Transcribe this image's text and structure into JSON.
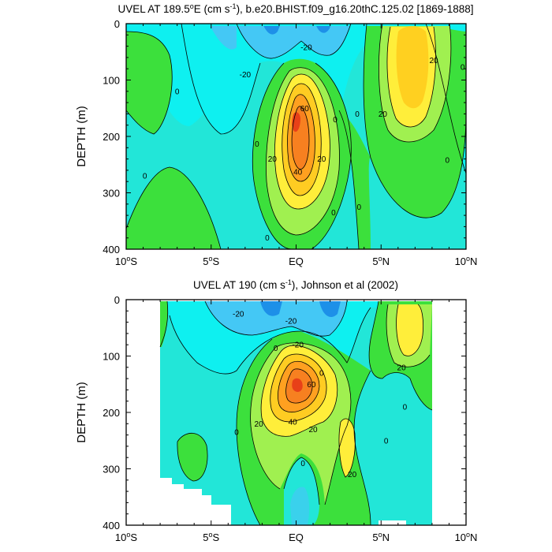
{
  "chart_data": [
    {
      "type": "contour",
      "title_main": "UVEL AT 189.5",
      "title_sup1": "o",
      "title_mid": "E (cm s",
      "title_sup2": "-1",
      "title_tail": "), b.e20.BHIST.f09_g16.20thC.125.02 [1869-1888]",
      "ylabel": "DEPTH (m)",
      "xticks": [
        {
          "v": -10,
          "main": "10",
          "sup": "o",
          "end": "S"
        },
        {
          "v": -5,
          "main": "5",
          "sup": "o",
          "end": "S"
        },
        {
          "v": 0,
          "main": "EQ",
          "sup": "",
          "end": ""
        },
        {
          "v": 5,
          "main": "5",
          "sup": "o",
          "end": "N"
        },
        {
          "v": 10,
          "main": "10",
          "sup": "o",
          "end": "N"
        }
      ],
      "yticks": [
        0,
        100,
        200,
        300,
        400
      ],
      "xlim": [
        -10,
        10
      ],
      "ylim": [
        0,
        400
      ],
      "contour_labels": [
        {
          "text": "-20",
          "x": -3,
          "y": 90
        },
        {
          "text": "-20",
          "x": 0.6,
          "y": 42
        },
        {
          "text": "0",
          "x": -7,
          "y": 120
        },
        {
          "text": "0",
          "x": -8.9,
          "y": 270
        },
        {
          "text": "0",
          "x": -2.3,
          "y": 213
        },
        {
          "text": "0",
          "x": 2.3,
          "y": 170
        },
        {
          "text": "0",
          "x": 3.6,
          "y": 160
        },
        {
          "text": "0",
          "x": 2.2,
          "y": 335
        },
        {
          "text": "0",
          "x": 3.7,
          "y": 325
        },
        {
          "text": "0",
          "x": -1.7,
          "y": 380
        },
        {
          "text": "0",
          "x": 8.9,
          "y": 242
        },
        {
          "text": "0",
          "x": 9.8,
          "y": 77
        },
        {
          "text": "20",
          "x": -1.4,
          "y": 240
        },
        {
          "text": "20",
          "x": 1.5,
          "y": 240
        },
        {
          "text": "20",
          "x": 5.1,
          "y": 160
        },
        {
          "text": "20",
          "x": 8.1,
          "y": 65
        },
        {
          "text": "40",
          "x": 0.1,
          "y": 263
        },
        {
          "text": "60",
          "x": 0.5,
          "y": 150
        }
      ]
    },
    {
      "type": "contour",
      "title_main": "UVEL AT 190 (cm s",
      "title_sup1": "-1",
      "title_tail": "), Johnson et al (2002)",
      "ylabel": "DEPTH (m)",
      "xticks": [
        {
          "v": -10,
          "main": "10",
          "sup": "o",
          "end": "S"
        },
        {
          "v": -5,
          "main": "5",
          "sup": "o",
          "end": "S"
        },
        {
          "v": 0,
          "main": "EQ",
          "sup": "",
          "end": ""
        },
        {
          "v": 5,
          "main": "5",
          "sup": "o",
          "end": "N"
        },
        {
          "v": 10,
          "main": "10",
          "sup": "o",
          "end": "N"
        }
      ],
      "yticks": [
        0,
        100,
        200,
        300,
        400
      ],
      "xlim": [
        -10,
        10
      ],
      "ylim": [
        0,
        400
      ],
      "contour_labels": [
        {
          "text": "-20",
          "x": -3.4,
          "y": 25
        },
        {
          "text": "-20",
          "x": -0.3,
          "y": 38
        },
        {
          "text": "-20",
          "x": 0.1,
          "y": 80
        },
        {
          "text": "0",
          "x": -1.2,
          "y": 86
        },
        {
          "text": "0",
          "x": 1.5,
          "y": 130
        },
        {
          "text": "0",
          "x": -3.5,
          "y": 235
        },
        {
          "text": "0",
          "x": 5.3,
          "y": 250
        },
        {
          "text": "0",
          "x": 0.4,
          "y": 290
        },
        {
          "text": "0",
          "x": 6.4,
          "y": 190
        },
        {
          "text": "20",
          "x": -2.2,
          "y": 220
        },
        {
          "text": "20",
          "x": 1,
          "y": 230
        },
        {
          "text": "20",
          "x": 6.2,
          "y": 120
        },
        {
          "text": "20",
          "x": 3.3,
          "y": 310
        },
        {
          "text": "40",
          "x": -0.2,
          "y": 217
        },
        {
          "text": "60",
          "x": 0.9,
          "y": 150
        }
      ]
    }
  ]
}
